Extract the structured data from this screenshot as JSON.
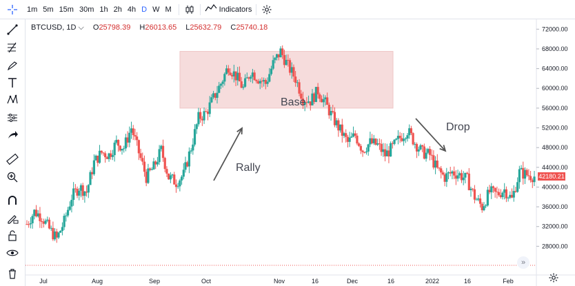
{
  "toolbar": {
    "timeframes": [
      "1m",
      "5m",
      "15m",
      "30m",
      "1h",
      "2h",
      "4h",
      "D",
      "W",
      "M"
    ],
    "active_timeframe": "D",
    "indicators_label": "Indicators"
  },
  "legend": {
    "symbol": "BTCUSD, 1D",
    "open_label": "O",
    "open": "25798.39",
    "high_label": "H",
    "high": "26013.65",
    "low_label": "L",
    "low": "25632.79",
    "close_label": "C",
    "close": "25740.18"
  },
  "last_price": "42180.21",
  "colors": {
    "up": "#26a69a",
    "down": "#ef5350",
    "zone": "#f6dcdc",
    "accent": "#2962ff"
  },
  "annotations": {
    "rally": "Rally",
    "base": "Base",
    "drop": "Drop"
  },
  "chart_data": {
    "type": "candlestick",
    "symbol": "BTCUSD",
    "interval": "1D",
    "ylim": [
      24000,
      74000
    ],
    "y_ticks": [
      28000,
      32000,
      36000,
      40000,
      44000,
      48000,
      52000,
      56000,
      60000,
      64000,
      68000,
      72000
    ],
    "x_ticks": [
      "Jul",
      "Aug",
      "Sep",
      "Oct",
      "Nov",
      "16",
      "Dec",
      "16",
      "2022",
      "16",
      "Feb"
    ],
    "base_zone": {
      "y_low": 56000,
      "y_high": 67500
    },
    "trend_close": [
      32500,
      35000,
      34000,
      31500,
      29500,
      33000,
      38000,
      40000,
      39000,
      45000,
      47000,
      46500,
      49000,
      48000,
      52000,
      47000,
      42000,
      44000,
      47500,
      42000,
      41000,
      42500,
      48000,
      54000,
      55000,
      58000,
      61000,
      64500,
      62500,
      60000,
      63500,
      62000,
      61000,
      65000,
      67500,
      64500,
      62000,
      58000,
      57500,
      59500,
      57000,
      54000,
      51500,
      49000,
      50500,
      47500,
      49000,
      48500,
      46500,
      48000,
      50000,
      51500,
      49000,
      47000,
      46500,
      43500,
      42000,
      43000,
      42500,
      41500,
      38000,
      36000,
      39000,
      38500,
      39500,
      37500,
      43000,
      42500,
      42180
    ]
  }
}
